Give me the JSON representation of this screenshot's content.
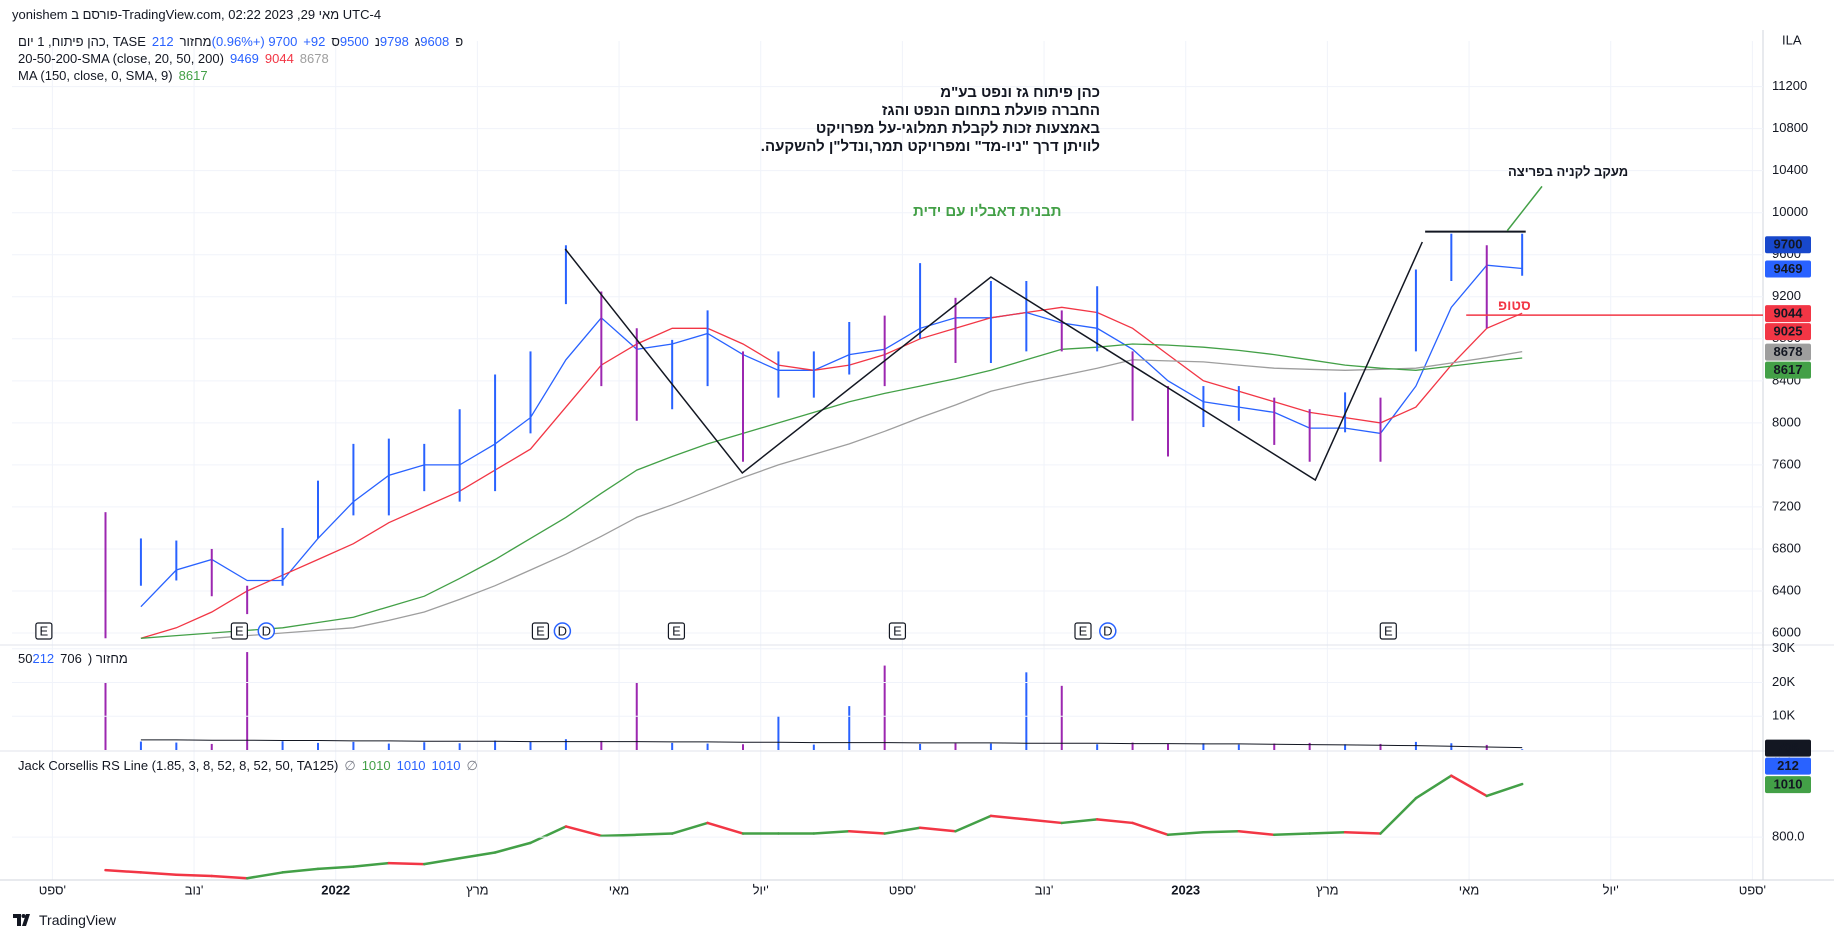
{
  "header": {
    "byline": "yonishem פורסם ב-TradingView.com, מאי 29, 2023 02:22 UTC-4"
  },
  "footer": "TradingView",
  "chart_data": [
    {
      "type": "ohlc",
      "symbol": "כהן פיתוח, 1 יום, TASE",
      "quote": [
        {
          "label": "פ",
          "value": 9608
        },
        {
          "label": "ג",
          "value": 9798
        },
        {
          "label": "נ",
          "value": 9500
        },
        {
          "label": "ס",
          "value": 9700
        }
      ],
      "change": "+92 (+0.96%)",
      "volume_label": "מחזור",
      "volume": 212,
      "currency": "ILA",
      "up_color": "#2962ff",
      "down_color": "#9c27b0",
      "xlim": [
        -0.57,
        24.15
      ],
      "ylim": [
        5905,
        11634
      ],
      "yticks": [
        6000,
        6400,
        6800,
        7200,
        7600,
        8000,
        8400,
        8800,
        9200,
        9600,
        10000,
        10400,
        10800,
        11200
      ],
      "grid": true,
      "x": [
        0.75,
        1.25,
        1.75,
        2.25,
        2.75,
        3.25,
        3.75,
        4.25,
        4.75,
        5.25,
        5.75,
        6.25,
        6.75,
        7.25,
        7.75,
        8.25,
        8.75,
        9.25,
        9.75,
        10.25,
        10.75,
        11.25,
        11.75,
        12.25,
        12.75,
        13.25,
        13.75,
        14.25,
        14.75,
        15.25,
        15.75,
        16.25,
        16.75,
        17.25,
        17.75,
        18.25,
        18.75,
        19.25,
        19.75,
        20.25,
        20.75
      ],
      "high": [
        7150,
        6900,
        6880,
        6800,
        6450,
        7000,
        7450,
        7800,
        7850,
        7800,
        8130,
        8460,
        8680,
        9690,
        9250,
        8900,
        8790,
        9070,
        8680,
        8680,
        8680,
        8960,
        9020,
        9520,
        9190,
        9350,
        9350,
        9070,
        9300,
        8680,
        8350,
        8350,
        8350,
        8240,
        8130,
        8290,
        8240,
        9460,
        9800,
        9690,
        9800
      ],
      "low": [
        5950,
        6450,
        6500,
        6350,
        6180,
        6450,
        6900,
        7120,
        7120,
        7350,
        7250,
        7350,
        7900,
        9130,
        8350,
        8020,
        8130,
        8350,
        7630,
        8240,
        8240,
        8460,
        8350,
        8800,
        8570,
        8570,
        8680,
        8680,
        8680,
        8020,
        7680,
        7960,
        8020,
        7790,
        7630,
        7910,
        7630,
        8680,
        9350,
        8900,
        9400
      ],
      "studies": [
        {
          "name": "20-50-200-SMA (close, 20, 50, 200)",
          "lines": [
            {
              "color": "#2962ff",
              "values": [
                null,
                6250,
                6600,
                6700,
                6500,
                6500,
                6900,
                7250,
                7500,
                7600,
                7600,
                7800,
                8050,
                8600,
                9000,
                8700,
                8750,
                8850,
                8650,
                8500,
                8500,
                8650,
                8700,
                8900,
                9000,
                9000,
                9050,
                8950,
                8900,
                8700,
                8400,
                8200,
                8150,
                8100,
                7950,
                7950,
                7900,
                8350,
                9100,
                9500,
                9469
              ]
            },
            {
              "color": "#f23645",
              "values": [
                null,
                5950,
                6050,
                6200,
                6400,
                6550,
                6700,
                6850,
                7050,
                7200,
                7350,
                7550,
                7750,
                8150,
                8550,
                8750,
                8900,
                8900,
                8750,
                8550,
                8500,
                8550,
                8650,
                8800,
                8900,
                9000,
                9050,
                9100,
                9050,
                8900,
                8650,
                8400,
                8300,
                8200,
                8100,
                8050,
                8000,
                8150,
                8550,
                8900,
                9044
              ]
            },
            {
              "color": "#9e9e9e",
              "values": [
                null,
                null,
                null,
                5950,
                5975,
                6000,
                6025,
                6050,
                6120,
                6200,
                6320,
                6450,
                6600,
                6750,
                6920,
                7100,
                7220,
                7350,
                7480,
                7600,
                7700,
                7800,
                7920,
                8050,
                8170,
                8300,
                8380,
                8450,
                8520,
                8600,
                8590,
                8580,
                8550,
                8520,
                8510,
                8500,
                8510,
                8520,
                8570,
                8620,
                8678
              ]
            }
          ]
        },
        {
          "name": "MA (150, close, 0, SMA, 9)",
          "lines": [
            {
              "color": "#43a047",
              "values": [
                null,
                5950,
                5975,
                6000,
                6025,
                6050,
                6100,
                6150,
                6250,
                6350,
                6520,
                6700,
                6900,
                7100,
                7330,
                7550,
                7680,
                7800,
                7900,
                8000,
                8100,
                8200,
                8280,
                8350,
                8420,
                8500,
                8600,
                8700,
                8720,
                8750,
                8740,
                8720,
                8690,
                8650,
                8600,
                8550,
                8520,
                8500,
                8540,
                8580,
                8617
              ]
            }
          ]
        }
      ],
      "notes": [
        "כהן פיתוח גז ונפט בע\"מ",
        "החברה פועלת בתחום הנפט והגז",
        "באמצעות זכות לקבלת תמלוגי-על מפרויקט",
        "לוויתן דרך \"ניו-מד\" ומפרויקט תמר,ונדל\"ן להשקעה."
      ],
      "pattern": {
        "label": "תבנית דאבליו עם ידית",
        "label_color": "#43a047",
        "color": "#131722",
        "x": [
          7.24,
          9.74,
          13.25,
          17.83,
          19.34
        ],
        "values": [
          9655,
          7523,
          9388,
          7456,
          9721
        ]
      },
      "resistance": {
        "x": [
          19.38,
          20.8
        ],
        "value": 9820,
        "color": "#131722"
      },
      "breakout": {
        "label": "מעקב לקניה בפריצה",
        "color": "#43a047",
        "x": [
          20.54,
          21.03
        ],
        "values": [
          9830,
          10250
        ]
      },
      "stop": {
        "label": "סטופ",
        "value": 9025,
        "x": [
          19.96,
          24.15
        ],
        "color": "#f23645"
      },
      "events": [
        {
          "x": -0.12,
          "label": "E"
        },
        {
          "x": 2.64,
          "label": "E"
        },
        {
          "x": 3.02,
          "label": "D"
        },
        {
          "x": 6.89,
          "label": "E"
        },
        {
          "x": 7.2,
          "label": "D"
        },
        {
          "x": 8.81,
          "label": "E"
        },
        {
          "x": 11.93,
          "label": "E"
        },
        {
          "x": 14.55,
          "label": "E"
        },
        {
          "x": 14.9,
          "label": "D"
        },
        {
          "x": 18.86,
          "label": "E"
        }
      ]
    },
    {
      "type": "bar",
      "legend": "מחזור (50",
      "up_color": "#2962ff",
      "down_color": "#9c27b0",
      "xlim": [
        -0.57,
        24.15
      ],
      "ylim": [
        0,
        30500
      ],
      "yticks": [
        {
          "value": 10000,
          "label": "10K"
        },
        {
          "value": 20000,
          "label": "20K"
        },
        {
          "value": 30000,
          "label": "30K"
        }
      ],
      "x": [
        0.75,
        1.25,
        1.75,
        2.25,
        2.75,
        3.25,
        3.75,
        4.25,
        4.75,
        5.25,
        5.75,
        6.25,
        6.75,
        7.25,
        7.75,
        8.25,
        8.75,
        9.25,
        9.75,
        10.25,
        10.75,
        11.25,
        11.75,
        12.25,
        12.75,
        13.25,
        13.75,
        14.25,
        14.75,
        15.25,
        15.75,
        16.25,
        16.75,
        17.25,
        17.75,
        18.25,
        18.75,
        19.25,
        19.75,
        20.25,
        20.75
      ],
      "values": [
        20000,
        2500,
        2200,
        1800,
        29000,
        2600,
        2100,
        2400,
        1900,
        2300,
        2000,
        2800,
        2500,
        3200,
        2700,
        20000,
        2100,
        1900,
        1700,
        10000,
        1600,
        13000,
        25000,
        1800,
        2000,
        1900,
        23000,
        19000,
        1700,
        2200,
        1800,
        2000,
        1600,
        1900,
        2100,
        1700,
        1800,
        2400,
        2000,
        1500,
        212
      ],
      "ma_color": "#131722",
      "ma": [
        null,
        3000,
        3000,
        2900,
        2900,
        2800,
        2800,
        2700,
        2700,
        2600,
        2600,
        2600,
        2500,
        2500,
        2500,
        2500,
        2400,
        2400,
        2300,
        2300,
        2200,
        2200,
        2200,
        2100,
        2100,
        2100,
        2000,
        2000,
        2000,
        1900,
        1900,
        1800,
        1800,
        1700,
        1600,
        1500,
        1400,
        1300,
        1100,
        900,
        706
      ]
    },
    {
      "type": "line",
      "title": "Jack Corsellis RS Line (1.85, 3, 8, 52, 8, 52, 50, TA125)",
      "empty_symbol": "∅",
      "currency": "ILA",
      "up_color": "#43a047",
      "down_color": "#f23645",
      "xlim": [
        -0.57,
        24.15
      ],
      "ylim": [
        630,
        1137
      ],
      "yticks": [
        {
          "value": 800,
          "label": "800.0"
        }
      ],
      "xticks": [
        {
          "value": 0,
          "label": "ספט'"
        },
        {
          "value": 2,
          "label": "נוב'"
        },
        {
          "value": 4,
          "label": "2022"
        },
        {
          "value": 6,
          "label": "מרץ"
        },
        {
          "value": 8,
          "label": "מאי"
        },
        {
          "value": 10,
          "label": "יול'"
        },
        {
          "value": 12,
          "label": "ספט'"
        },
        {
          "value": 14,
          "label": "נוב'"
        },
        {
          "value": 16,
          "label": "2023"
        },
        {
          "value": 18,
          "label": "מרץ"
        },
        {
          "value": 20,
          "label": "מאי"
        },
        {
          "value": 22,
          "label": "יול'"
        },
        {
          "value": 24,
          "label": "ספט'"
        }
      ],
      "x": [
        0.75,
        1.25,
        1.75,
        2.25,
        2.75,
        3.25,
        3.75,
        4.25,
        4.75,
        5.25,
        5.75,
        6.25,
        6.75,
        7.25,
        7.75,
        8.25,
        8.75,
        9.25,
        9.75,
        10.25,
        10.75,
        11.25,
        11.75,
        12.25,
        12.75,
        13.25,
        13.75,
        14.25,
        14.75,
        15.25,
        15.75,
        16.25,
        16.75,
        17.25,
        17.75,
        18.25,
        18.75,
        19.25,
        19.75,
        20.25,
        20.75
      ],
      "values": [
        669,
        660,
        651,
        646,
        637,
        660,
        674,
        683,
        697,
        693,
        716,
        739,
        777,
        842,
        805,
        809,
        814,
        856,
        814,
        814,
        814,
        823,
        814,
        837,
        823,
        884,
        870,
        856,
        870,
        856,
        809,
        819,
        823,
        809,
        814,
        819,
        814,
        954,
        1043,
        963,
        1010
      ]
    }
  ]
}
